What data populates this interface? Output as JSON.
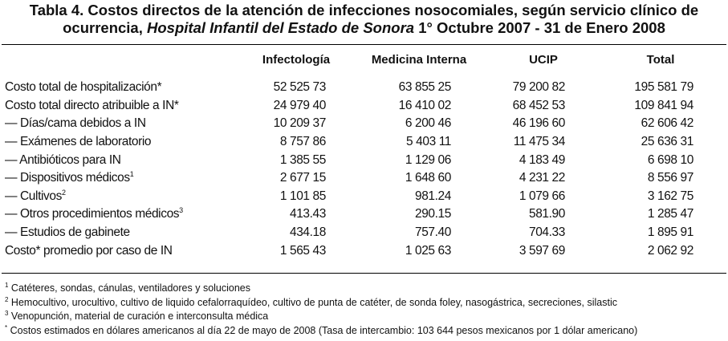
{
  "title": {
    "line1": "Tabla 4. Costos directos de la atención de infecciones nosocomiales, según servicio clínico de",
    "line2_pre": "ocurrencia, ",
    "line2_italic": "Hospital Infantil del Estado de Sonora",
    "line2_post": " 1° Octubre 2007 - 31 de Enero 2008"
  },
  "table": {
    "headers": [
      "",
      "Infectología",
      "Medicina Interna",
      "UCIP",
      "Total"
    ],
    "rows": [
      {
        "label": "Costo total de hospitalización*",
        "sup": "",
        "values": [
          "52 525 73",
          "63 855 25",
          "79 200 82",
          "195 581 79"
        ]
      },
      {
        "label": "Costo total directo atribuible a IN*",
        "sup": "",
        "values": [
          "24 979 40",
          "16 410 02",
          "68 452 53",
          "109 841 94"
        ]
      },
      {
        "label": " — Días/cama debidos a IN",
        "sup": "",
        "values": [
          "10 209 37",
          "6 200 46",
          "46 196 60",
          "62 606 42"
        ]
      },
      {
        "label": " — Exámenes de laboratorio",
        "sup": "",
        "values": [
          "8 757 86",
          "5 403 11",
          "11 475 34",
          "25 636 31"
        ]
      },
      {
        "label": " — Antibióticos para IN",
        "sup": "",
        "values": [
          "1 385 55",
          "1 129 06",
          "4 183 49",
          "6 698 10"
        ]
      },
      {
        "label": " — Dispositivos médicos",
        "sup": "1",
        "values": [
          "2 677 15",
          "1 648 60",
          "4 231 22",
          "8 556 97"
        ]
      },
      {
        "label": " — Cultivos",
        "sup": "2",
        "values": [
          "1 101 85",
          "981.24",
          "1 079 66",
          "3 162 75"
        ]
      },
      {
        "label": " — Otros procedimientos médicos",
        "sup": "3",
        "values": [
          "413.43",
          "290.15",
          "581.90",
          "1 285 47"
        ]
      },
      {
        "label": " — Estudios de gabinete",
        "sup": "",
        "values": [
          "434.18",
          "757.40",
          "704.33",
          "1 895 91"
        ]
      },
      {
        "label": "Costo* promedio por caso de IN",
        "sup": "",
        "values": [
          "1 565 43",
          "1 025 63",
          "3 597 69",
          "2 062 92"
        ]
      }
    ]
  },
  "footnotes": [
    {
      "mark": "1",
      "text": " Catéteres, sondas, cánulas, ventiladores y soluciones"
    },
    {
      "mark": "2",
      "text": " Hemocultivo, urocultivo, cultivo de liquido cefalorraquídeo, cultivo de punta de catéter, de sonda foley, nasogástrica, secreciones, silastic"
    },
    {
      "mark": "3",
      "text": " Venopunción, material de curación e interconsulta médica"
    },
    {
      "mark": "*",
      "text": " Costos estimados en dólares americanos al día 22 de mayo de 2008 (Tasa de intercambio: 103 644 pesos mexicanos por 1 dólar americano)"
    }
  ]
}
